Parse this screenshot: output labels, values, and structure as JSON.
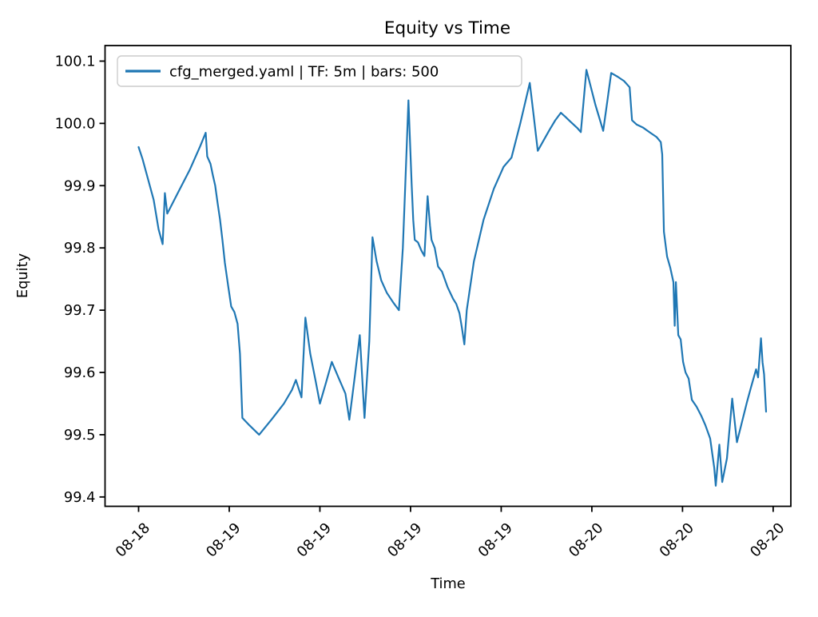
{
  "title": "Equity vs Time",
  "axis": {
    "xlabel": "Time",
    "ylabel": "Equity"
  },
  "legend": {
    "label": "cfg_merged.yaml | TF: 5m | bars: 500",
    "position": "upper left"
  },
  "colors": {
    "line": "#1f77b4",
    "axes": "#000000",
    "background": "#ffffff",
    "legend_border": "#cccccc"
  },
  "chart_data": {
    "type": "line",
    "title": "Equity vs Time",
    "xlabel": "Time",
    "ylabel": "Equity",
    "grid": false,
    "legend_position": "upper left",
    "xlim_hours": [
      -2.22,
      43.17
    ],
    "ylim": [
      99.385,
      100.125
    ],
    "x_ticks": {
      "hours": [
        0,
        6,
        12,
        18,
        24,
        30,
        36,
        42
      ],
      "labels": [
        "08-18",
        "08-19",
        "08-19",
        "08-19",
        "08-19",
        "08-20",
        "08-20",
        "08-20"
      ],
      "rotation_deg": 45
    },
    "y_ticks": {
      "values": [
        100.1,
        100.0,
        99.9,
        99.8,
        99.7,
        99.6,
        99.5,
        99.4
      ],
      "labels": [
        "100.1",
        "100.0",
        "99.9",
        "99.8",
        "99.7",
        "99.6",
        "99.5",
        "99.4"
      ]
    },
    "series": [
      {
        "name": "cfg_merged.yaml | TF: 5m | bars: 500",
        "color": "#1f77b4",
        "timeframe": "5m",
        "bars": 500,
        "x_hours": [
          0,
          0.26,
          0.63,
          1.0,
          1.32,
          1.59,
          1.74,
          1.9,
          2.59,
          3.38,
          4.07,
          4.44,
          4.54,
          4.76,
          4.91,
          5.07,
          5.23,
          5.39,
          5.55,
          5.71,
          5.92,
          6.13,
          6.34,
          6.55,
          6.71,
          6.87,
          7.34,
          7.98,
          8.82,
          9.62,
          10.15,
          10.41,
          10.78,
          11.04,
          11.36,
          11.73,
          12.0,
          12.42,
          12.79,
          13.26,
          13.69,
          13.95,
          14.32,
          14.64,
          14.95,
          15.27,
          15.48,
          15.75,
          16.06,
          16.43,
          16.86,
          17.23,
          17.49,
          17.65,
          17.86,
          18.07,
          18.18,
          18.28,
          18.49,
          18.71,
          18.92,
          19.13,
          19.29,
          19.39,
          19.6,
          19.82,
          20.08,
          20.45,
          20.82,
          21.03,
          21.24,
          21.4,
          21.56,
          21.72,
          22.19,
          22.83,
          23.51,
          24.15,
          24.68,
          25.26,
          25.89,
          26.16,
          26.42,
          26.79,
          27.21,
          27.58,
          27.95,
          28.27,
          28.53,
          29.06,
          29.27,
          29.64,
          30.23,
          30.75,
          31.02,
          31.28,
          31.71,
          32.13,
          32.5,
          32.66,
          32.97,
          33.4,
          33.87,
          34.29,
          34.56,
          34.66,
          34.77,
          34.98,
          35.19,
          35.4,
          35.48,
          35.56,
          35.72,
          35.88,
          36.04,
          36.2,
          36.41,
          36.62,
          36.93,
          37.25,
          37.52,
          37.83,
          38.1,
          38.2,
          38.44,
          38.63,
          38.94,
          39.29,
          39.6,
          39.89,
          40.26,
          40.53,
          40.87,
          41.0,
          41.19,
          41.3,
          41.4,
          41.53
        ],
        "equity": [
          99.962,
          99.943,
          99.91,
          99.877,
          99.83,
          99.806,
          99.888,
          99.855,
          99.888,
          99.925,
          99.963,
          99.985,
          99.947,
          99.935,
          99.917,
          99.9,
          99.872,
          99.846,
          99.812,
          99.776,
          99.74,
          99.706,
          99.697,
          99.678,
          99.63,
          99.527,
          99.515,
          99.5,
          99.525,
          99.55,
          99.572,
          99.588,
          99.56,
          99.688,
          99.63,
          99.585,
          99.55,
          99.585,
          99.617,
          99.59,
          99.566,
          99.524,
          99.595,
          99.66,
          99.527,
          99.65,
          99.817,
          99.779,
          99.748,
          99.728,
          99.712,
          99.7,
          99.8,
          99.9,
          100.037,
          99.903,
          99.845,
          99.813,
          99.809,
          99.796,
          99.787,
          99.883,
          99.836,
          99.813,
          99.8,
          99.77,
          99.762,
          99.737,
          99.718,
          99.71,
          99.695,
          99.672,
          99.645,
          99.7,
          99.778,
          99.845,
          99.895,
          99.93,
          99.945,
          100.0,
          100.065,
          100.01,
          99.956,
          99.972,
          99.99,
          100.005,
          100.017,
          100.01,
          100.004,
          99.992,
          99.986,
          100.086,
          100.03,
          99.988,
          100.035,
          100.081,
          100.075,
          100.068,
          100.058,
          100.005,
          99.998,
          99.993,
          99.985,
          99.978,
          99.97,
          99.95,
          99.826,
          99.786,
          99.768,
          99.745,
          99.675,
          99.745,
          99.66,
          99.653,
          99.617,
          99.6,
          99.59,
          99.556,
          99.545,
          99.53,
          99.515,
          99.494,
          99.447,
          99.418,
          99.484,
          99.424,
          99.462,
          99.558,
          99.488,
          99.516,
          99.552,
          99.576,
          99.605,
          99.592,
          99.655,
          99.616,
          99.597,
          99.537
        ]
      }
    ]
  }
}
